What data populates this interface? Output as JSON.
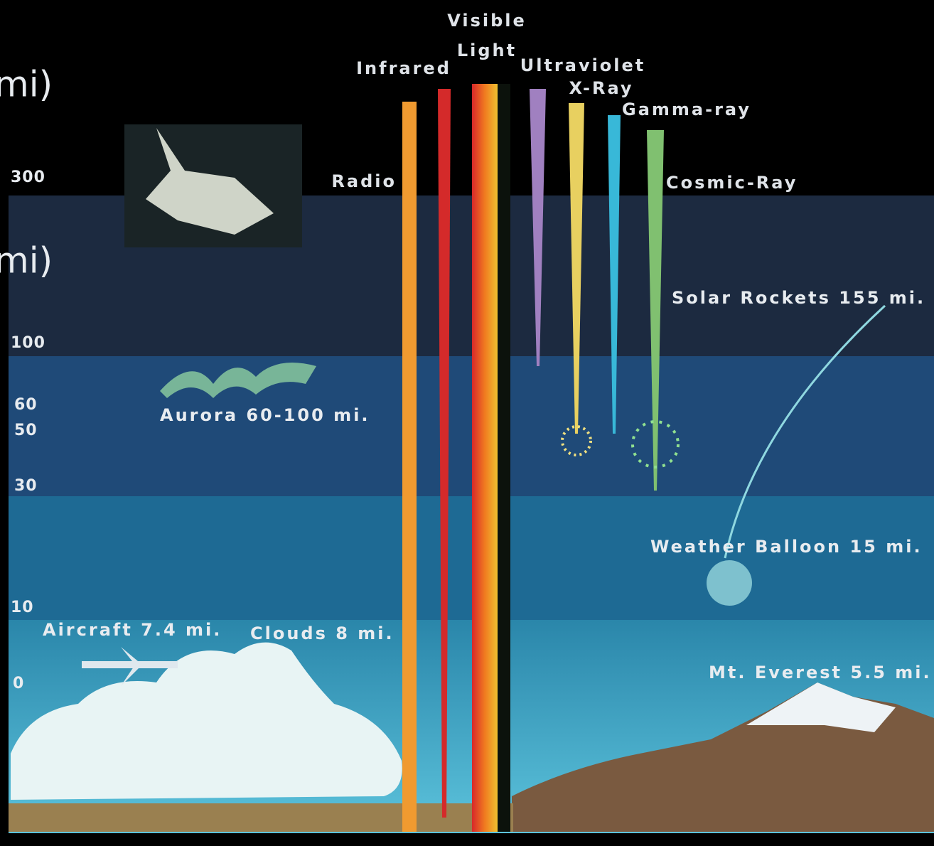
{
  "unit_labels": [
    "mi)",
    "mi)"
  ],
  "altitudes": [
    "300",
    "100",
    "60",
    "50",
    "30",
    "10",
    "0"
  ],
  "bands": {
    "visible": [
      "Visible",
      "Light"
    ],
    "infrared": "Infrared",
    "ultraviolet": "Ultraviolet",
    "xray": "X-Ray",
    "gamma": "Gamma-ray",
    "radio": "Radio",
    "cosmic": "Cosmic-Ray"
  },
  "annotations": {
    "aurora": "Aurora 60-100 mi.",
    "solar_rockets": "Solar Rockets 155 mi.",
    "weather_balloon": "Weather Balloon 15 mi.",
    "aircraft": "Aircraft 7.4 mi.",
    "clouds": "Clouds 8 mi.",
    "everest": "Mt. Everest 5.5 mi."
  }
}
